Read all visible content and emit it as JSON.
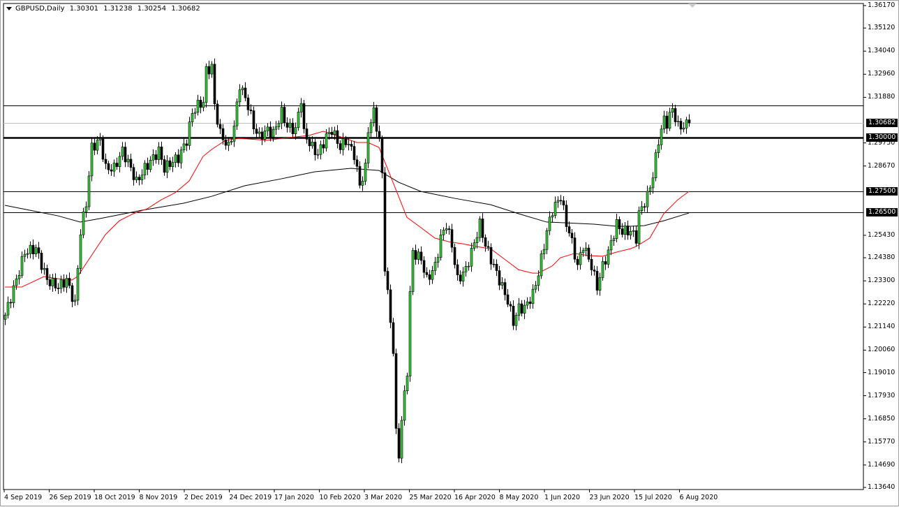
{
  "header": {
    "symbol": "GBPUSD,Daily",
    "open": "1.30301",
    "high": "1.31238",
    "low": "1.30254",
    "close": "1.30682"
  },
  "colors": {
    "bull_candle": "#32cd32",
    "bear_candle": "#000000",
    "ma_fast": "#ff0000",
    "ma_slow": "#000000",
    "current_price_line": "#c0c0c0"
  },
  "chart_data": {
    "type": "candlestick",
    "title": "GBPUSD,Daily",
    "ylim": [
      1.1364,
      1.3617
    ],
    "y_ticks": [
      "1.36170",
      "1.35120",
      "1.34040",
      "1.32960",
      "1.31880",
      "1.29750",
      "1.28670",
      "1.25430",
      "1.24380",
      "1.23300",
      "1.22220",
      "1.21140",
      "1.20060",
      "1.19010",
      "1.17930",
      "1.16850",
      "1.15770",
      "1.14690",
      "1.13640"
    ],
    "x_ticks": [
      "4 Sep 2019",
      "26 Sep 2019",
      "18 Oct 2019",
      "8 Nov 2019",
      "2 Dec 2019",
      "24 Dec 2019",
      "17 Jan 2020",
      "10 Feb 2020",
      "3 Mar 2020",
      "25 Mar 2020",
      "16 Apr 2020",
      "8 May 2020",
      "1 Jun 2020",
      "23 Jun 2020",
      "15 Jul 2020",
      "6 Aug 2020"
    ],
    "bars_total": 246,
    "close_path": [
      [
        0,
        1.217
      ],
      [
        4,
        1.2334
      ],
      [
        7,
        1.2464
      ],
      [
        11,
        1.2481
      ],
      [
        15,
        1.2334
      ],
      [
        19,
        1.2301
      ],
      [
        22,
        1.2334
      ],
      [
        25,
        1.2219
      ],
      [
        27,
        1.2562
      ],
      [
        29,
        1.2693
      ],
      [
        31,
        1.2954
      ],
      [
        34,
        1.2987
      ],
      [
        36,
        1.2856
      ],
      [
        39,
        1.2856
      ],
      [
        42,
        1.2938
      ],
      [
        45,
        1.2856
      ],
      [
        47,
        1.2791
      ],
      [
        50,
        1.2856
      ],
      [
        52,
        1.2889
      ],
      [
        55,
        1.2938
      ],
      [
        57,
        1.2856
      ],
      [
        60,
        1.2889
      ],
      [
        62,
        1.2905
      ],
      [
        65,
        1.2987
      ],
      [
        67,
        1.3117
      ],
      [
        69,
        1.315
      ],
      [
        71,
        1.3166
      ],
      [
        72,
        1.3313
      ],
      [
        74,
        1.333
      ],
      [
        75,
        1.315
      ],
      [
        77,
        1.3019
      ],
      [
        80,
        1.2954
      ],
      [
        82,
        1.3052
      ],
      [
        84,
        1.3248
      ],
      [
        87,
        1.315
      ],
      [
        89,
        1.3052
      ],
      [
        91,
        1.3003
      ],
      [
        94,
        1.3036
      ],
      [
        96,
        1.3019
      ],
      [
        99,
        1.3117
      ],
      [
        101,
        1.3052
      ],
      [
        104,
        1.3036
      ],
      [
        106,
        1.3183
      ],
      [
        107,
        1.3019
      ],
      [
        110,
        1.2954
      ],
      [
        112,
        1.2921
      ],
      [
        115,
        1.3003
      ],
      [
        117,
        1.3036
      ],
      [
        120,
        1.2954
      ],
      [
        122,
        1.2987
      ],
      [
        125,
        1.2921
      ],
      [
        127,
        1.2775
      ],
      [
        129,
        1.2856
      ],
      [
        130,
        1.3036
      ],
      [
        132,
        1.3117
      ],
      [
        134,
        1.2987
      ],
      [
        135,
        1.2823
      ],
      [
        136,
        1.2399
      ],
      [
        137,
        1.2268
      ],
      [
        139,
        1.2007
      ],
      [
        140,
        1.1615
      ],
      [
        141,
        1.1517
      ],
      [
        142,
        1.1681
      ],
      [
        144,
        1.1909
      ],
      [
        145,
        1.2268
      ],
      [
        146,
        1.2464
      ],
      [
        149,
        1.2432
      ],
      [
        151,
        1.2334
      ],
      [
        154,
        1.2399
      ],
      [
        156,
        1.253
      ],
      [
        158,
        1.2595
      ],
      [
        160,
        1.2497
      ],
      [
        162,
        1.2334
      ],
      [
        165,
        1.2383
      ],
      [
        167,
        1.2464
      ],
      [
        170,
        1.2595
      ],
      [
        172,
        1.2497
      ],
      [
        175,
        1.2399
      ],
      [
        177,
        1.2334
      ],
      [
        180,
        1.2236
      ],
      [
        182,
        1.2138
      ],
      [
        184,
        1.2203
      ],
      [
        186,
        1.2203
      ],
      [
        189,
        1.2268
      ],
      [
        191,
        1.2366
      ],
      [
        194,
        1.2562
      ],
      [
        196,
        1.266
      ],
      [
        199,
        1.2725
      ],
      [
        201,
        1.2595
      ],
      [
        202,
        1.2562
      ],
      [
        205,
        1.2399
      ],
      [
        207,
        1.2497
      ],
      [
        210,
        1.2399
      ],
      [
        212,
        1.2301
      ],
      [
        214,
        1.2399
      ],
      [
        216,
        1.2464
      ],
      [
        219,
        1.2595
      ],
      [
        221,
        1.2562
      ],
      [
        224,
        1.2562
      ],
      [
        226,
        1.253
      ],
      [
        227,
        1.2644
      ],
      [
        230,
        1.2725
      ],
      [
        232,
        1.2823
      ],
      [
        234,
        1.2987
      ],
      [
        236,
        1.3085
      ],
      [
        237,
        1.3068
      ],
      [
        239,
        1.3134
      ],
      [
        241,
        1.3052
      ],
      [
        243,
        1.3052
      ],
      [
        245,
        1.30682
      ]
    ],
    "ma_fast": [
      [
        0,
        1.2301
      ],
      [
        6,
        1.2301
      ],
      [
        14,
        1.235
      ],
      [
        19,
        1.234
      ],
      [
        24,
        1.2334
      ],
      [
        26,
        1.235
      ],
      [
        31,
        1.2448
      ],
      [
        36,
        1.2546
      ],
      [
        41,
        1.2611
      ],
      [
        46,
        1.2644
      ],
      [
        51,
        1.2667
      ],
      [
        56,
        1.2709
      ],
      [
        61,
        1.2742
      ],
      [
        66,
        1.2797
      ],
      [
        71,
        1.2912
      ],
      [
        74,
        1.2944
      ],
      [
        79,
        1.2987
      ],
      [
        84,
        1.2996
      ],
      [
        94,
        1.2987
      ],
      [
        99,
        1.2996
      ],
      [
        109,
        1.301
      ],
      [
        114,
        1.3029
      ],
      [
        121,
        1.3
      ],
      [
        126,
        1.2977
      ],
      [
        130,
        1.2977
      ],
      [
        134,
        1.2954
      ],
      [
        139,
        1.2791
      ],
      [
        144,
        1.2627
      ],
      [
        149,
        1.2579
      ],
      [
        154,
        1.253
      ],
      [
        159,
        1.2513
      ],
      [
        164,
        1.2503
      ],
      [
        169,
        1.249
      ],
      [
        174,
        1.248
      ],
      [
        179,
        1.2431
      ],
      [
        184,
        1.2382
      ],
      [
        189,
        1.2366
      ],
      [
        191,
        1.2366
      ],
      [
        196,
        1.2399
      ],
      [
        199,
        1.2438
      ],
      [
        204,
        1.2458
      ],
      [
        209,
        1.2448
      ],
      [
        214,
        1.2445
      ],
      [
        219,
        1.2464
      ],
      [
        224,
        1.248
      ],
      [
        226,
        1.249
      ],
      [
        231,
        1.253
      ],
      [
        236,
        1.2644
      ],
      [
        241,
        1.2709
      ],
      [
        245,
        1.2748
      ]
    ],
    "ma_slow": [
      [
        0,
        1.2683
      ],
      [
        9,
        1.266
      ],
      [
        19,
        1.2634
      ],
      [
        27,
        1.2605
      ],
      [
        34,
        1.2621
      ],
      [
        49,
        1.266
      ],
      [
        64,
        1.2693
      ],
      [
        74,
        1.2725
      ],
      [
        86,
        1.2775
      ],
      [
        99,
        1.2807
      ],
      [
        111,
        1.284
      ],
      [
        124,
        1.2856
      ],
      [
        134,
        1.2846
      ],
      [
        141,
        1.2791
      ],
      [
        149,
        1.2748
      ],
      [
        161,
        1.2716
      ],
      [
        174,
        1.2686
      ],
      [
        184,
        1.2644
      ],
      [
        194,
        1.2605
      ],
      [
        201,
        1.2601
      ],
      [
        211,
        1.2595
      ],
      [
        219,
        1.2585
      ],
      [
        224,
        1.2585
      ],
      [
        229,
        1.2588
      ],
      [
        236,
        1.2611
      ],
      [
        245,
        1.2647
      ]
    ],
    "levels": [
      {
        "price": 1.315,
        "style": "thin"
      },
      {
        "price": 1.30682,
        "style": "current",
        "label": "1.30682"
      },
      {
        "price": 1.3,
        "style": "thick",
        "label": "1.30000"
      },
      {
        "price": 1.275,
        "style": "thin",
        "label": "1.27500"
      },
      {
        "price": 1.265,
        "style": "thin",
        "label": "1.26500"
      }
    ]
  }
}
